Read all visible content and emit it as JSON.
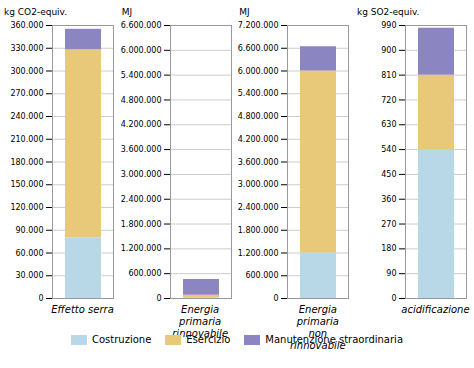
{
  "chart_data": [
    {
      "type": "bar",
      "stacked": true,
      "title": "kg CO2-equiv.",
      "xlabel": "Effetto serra",
      "categories": [
        null
      ],
      "series": [
        {
          "name": "Costruzione",
          "color": "#b8d8e8",
          "values": [
            80000
          ]
        },
        {
          "name": "Esercizio",
          "color": "#e8c97a",
          "values": [
            248000
          ]
        },
        {
          "name": "Manutenzione straordinaria",
          "color": "#8b85c1",
          "values": [
            27000
          ]
        }
      ],
      "ylim": [
        0,
        360000
      ],
      "yticks": [
        0,
        {
          "value": 30000,
          "label": "30.000"
        },
        {
          "value": 60000,
          "label": "60.000"
        },
        {
          "value": 90000,
          "label": "90.000"
        },
        {
          "value": 120000,
          "label": "120.000"
        },
        {
          "value": 150000,
          "label": "150.000"
        },
        {
          "value": 180000,
          "label": "180.000"
        },
        {
          "value": 210000,
          "label": "210.000"
        },
        {
          "value": 240000,
          "label": "240.000"
        },
        {
          "value": 270000,
          "label": "270.000"
        },
        {
          "value": 300000,
          "label": "300.000"
        },
        {
          "value": 330000,
          "label": "330.000"
        },
        {
          "value": 360000,
          "label": "360.000"
        }
      ],
      "grid": true,
      "legend": "bottom"
    },
    {
      "type": "bar",
      "stacked": true,
      "title": "MJ",
      "xlabel": "Energia primaria\nrinnovabile",
      "categories": [
        null
      ],
      "series": [
        {
          "name": "Costruzione",
          "color": "#b8d8e8",
          "values": [
            20000
          ]
        },
        {
          "name": "Esercizio",
          "color": "#e8c97a",
          "values": [
            60000
          ]
        },
        {
          "name": "Manutenzione straordinaria",
          "color": "#8b85c1",
          "values": [
            380000
          ]
        }
      ],
      "ylim": [
        0,
        6600000
      ],
      "yticks": [
        0,
        {
          "value": 600000,
          "label": "600.000"
        },
        {
          "value": 1200000,
          "label": "1.200.000"
        },
        {
          "value": 1800000,
          "label": "1.800.000"
        },
        {
          "value": 2400000,
          "label": "2.400.000"
        },
        {
          "value": 3000000,
          "label": "3.000.000"
        },
        {
          "value": 3600000,
          "label": "3.600.000"
        },
        {
          "value": 4200000,
          "label": "4.200.000"
        },
        {
          "value": 4800000,
          "label": "4.800.000"
        },
        {
          "value": 5400000,
          "label": "5.400.000"
        },
        {
          "value": 6000000,
          "label": "6.000.000"
        },
        {
          "value": 6600000,
          "label": "6.600.000"
        }
      ],
      "grid": true,
      "legend": "bottom"
    },
    {
      "type": "bar",
      "stacked": true,
      "title": "MJ",
      "xlabel": "Energia primaria\nnon rinnovabile",
      "categories": [
        null
      ],
      "series": [
        {
          "name": "Costruzione",
          "color": "#b8d8e8",
          "values": [
            1200000
          ]
        },
        {
          "name": "Esercizio",
          "color": "#e8c97a",
          "values": [
            4800000
          ]
        },
        {
          "name": "Manutenzione straordinaria",
          "color": "#8b85c1",
          "values": [
            640000
          ]
        }
      ],
      "ylim": [
        0,
        7200000
      ],
      "yticks": [
        0,
        {
          "value": 600000,
          "label": "600.000"
        },
        {
          "value": 1200000,
          "label": "1.200.000"
        },
        {
          "value": 1800000,
          "label": "1.800.000"
        },
        {
          "value": 2400000,
          "label": "2.400.000"
        },
        {
          "value": 3000000,
          "label": "3.000.000"
        },
        {
          "value": 3600000,
          "label": "3.600.000"
        },
        {
          "value": 4200000,
          "label": "4.200.000"
        },
        {
          "value": 4800000,
          "label": "4.800.000"
        },
        {
          "value": 5400000,
          "label": "5.400.000"
        },
        {
          "value": 6000000,
          "label": "6.000.000"
        },
        {
          "value": 6600000,
          "label": "6.600.000"
        },
        {
          "value": 7200000,
          "label": "7.200.000"
        }
      ],
      "grid": true,
      "legend": "bottom"
    },
    {
      "type": "bar",
      "stacked": true,
      "title": "kg SO2-equiv.",
      "xlabel": "acidificazione",
      "categories": [
        null
      ],
      "series": [
        {
          "name": "Costruzione",
          "color": "#b8d8e8",
          "values": [
            540
          ]
        },
        {
          "name": "Esercizio",
          "color": "#e8c97a",
          "values": [
            270
          ]
        },
        {
          "name": "Manutenzione straordinaria",
          "color": "#8b85c1",
          "values": [
            170
          ]
        }
      ],
      "ylim": [
        0,
        990
      ],
      "yticks": [
        0,
        90,
        180,
        270,
        360,
        450,
        540,
        630,
        720,
        810,
        900,
        990
      ],
      "grid": true,
      "legend": "bottom"
    }
  ]
}
